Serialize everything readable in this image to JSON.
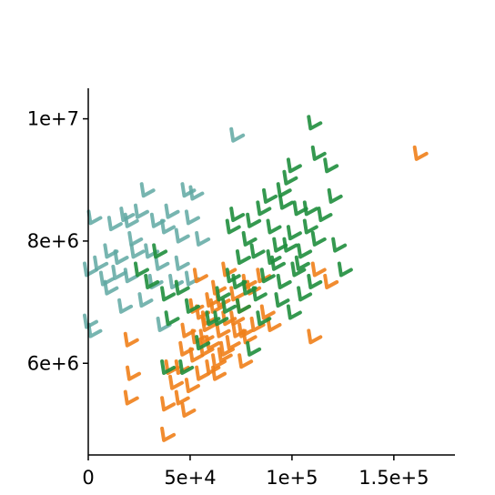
{
  "chart_data": {
    "type": "scatter",
    "title": "",
    "xlabel": "",
    "ylabel": "",
    "xlim": [
      0,
      180000
    ],
    "ylim": [
      4500000,
      10500000
    ],
    "x_ticks": [
      {
        "value": 0,
        "label": "0"
      },
      {
        "value": 50000,
        "label": "5e+4"
      },
      {
        "value": 100000,
        "label": "1e+5"
      },
      {
        "value": 150000,
        "label": "1.5e+5"
      }
    ],
    "y_ticks": [
      {
        "value": 6000000,
        "label": "6e+6"
      },
      {
        "value": 8000000,
        "label": "8e+6"
      },
      {
        "value": 10000000,
        "label": "1e+7"
      }
    ],
    "grid": false,
    "legend": "none",
    "marker": "check-mark",
    "series": [
      {
        "color": "#5fa8a2",
        "points": [
          [
            2000,
            8350000
          ],
          [
            12000,
            8250000
          ],
          [
            0,
            7500000
          ],
          [
            5000,
            7600000
          ],
          [
            10000,
            7800000
          ],
          [
            15000,
            7700000
          ],
          [
            18000,
            8400000
          ],
          [
            20000,
            7400000
          ],
          [
            22000,
            8000000
          ],
          [
            25000,
            8450000
          ],
          [
            28000,
            8800000
          ],
          [
            30000,
            7800000
          ],
          [
            33000,
            8300000
          ],
          [
            35000,
            7600000
          ],
          [
            38000,
            8200000
          ],
          [
            40000,
            8450000
          ],
          [
            42000,
            7300000
          ],
          [
            45000,
            8050000
          ],
          [
            48000,
            8800000
          ],
          [
            50000,
            8350000
          ],
          [
            52000,
            8750000
          ],
          [
            55000,
            8000000
          ],
          [
            27000,
            7000000
          ],
          [
            17000,
            6900000
          ],
          [
            10000,
            7200000
          ],
          [
            2000,
            6500000
          ],
          [
            32000,
            7300000
          ],
          [
            23000,
            7800000
          ],
          [
            14000,
            7450000
          ],
          [
            45000,
            7600000
          ],
          [
            50000,
            7350000
          ],
          [
            0,
            6650000
          ],
          [
            36000,
            6600000
          ],
          [
            72000,
            9700000
          ],
          [
            20000,
            8300000
          ],
          [
            8000,
            7350000
          ]
        ]
      },
      {
        "color": "#ef7f1a",
        "points": [
          [
            20000,
            6350000
          ],
          [
            21000,
            5800000
          ],
          [
            20000,
            5400000
          ],
          [
            38000,
            4800000
          ],
          [
            38000,
            5300000
          ],
          [
            40000,
            5900000
          ],
          [
            42000,
            5650000
          ],
          [
            45000,
            5900000
          ],
          [
            45000,
            5400000
          ],
          [
            47000,
            6200000
          ],
          [
            48000,
            5200000
          ],
          [
            50000,
            5600000
          ],
          [
            52000,
            6100000
          ],
          [
            53000,
            6400000
          ],
          [
            55000,
            5800000
          ],
          [
            55000,
            6800000
          ],
          [
            57000,
            6200000
          ],
          [
            58000,
            6600000
          ],
          [
            60000,
            5900000
          ],
          [
            60000,
            6300000
          ],
          [
            62000,
            6900000
          ],
          [
            63000,
            6000000
          ],
          [
            65000,
            6500000
          ],
          [
            65000,
            7000000
          ],
          [
            67000,
            6200000
          ],
          [
            68000,
            6700000
          ],
          [
            70000,
            6300000
          ],
          [
            72000,
            7100000
          ],
          [
            73000,
            6500000
          ],
          [
            75000,
            6900000
          ],
          [
            76000,
            6000000
          ],
          [
            78000,
            6400000
          ],
          [
            80000,
            7200000
          ],
          [
            82000,
            6600000
          ],
          [
            85000,
            7400000
          ],
          [
            87000,
            6800000
          ],
          [
            90000,
            6600000
          ],
          [
            78000,
            7300000
          ],
          [
            68000,
            7500000
          ],
          [
            63000,
            7200000
          ],
          [
            58000,
            6700000
          ],
          [
            52000,
            6900000
          ],
          [
            48000,
            6500000
          ],
          [
            54000,
            7400000
          ],
          [
            60000,
            7000000
          ],
          [
            110000,
            6400000
          ],
          [
            112000,
            7500000
          ],
          [
            118000,
            7300000
          ],
          [
            162000,
            9400000
          ],
          [
            63000,
            5800000
          ],
          [
            57000,
            6400000
          ],
          [
            66000,
            6100000
          ],
          [
            72000,
            6700000
          ],
          [
            76000,
            6500000
          ]
        ]
      },
      {
        "color": "#1f8e3d",
        "points": [
          [
            38000,
            5900000
          ],
          [
            47000,
            5900000
          ],
          [
            55000,
            6300000
          ],
          [
            60000,
            6700000
          ],
          [
            65000,
            7100000
          ],
          [
            70000,
            7400000
          ],
          [
            75000,
            7700000
          ],
          [
            78000,
            8000000
          ],
          [
            80000,
            8300000
          ],
          [
            82000,
            7800000
          ],
          [
            85000,
            8500000
          ],
          [
            88000,
            8700000
          ],
          [
            90000,
            8200000
          ],
          [
            92000,
            7600000
          ],
          [
            95000,
            8800000
          ],
          [
            98000,
            9000000
          ],
          [
            100000,
            8100000
          ],
          [
            102000,
            7500000
          ],
          [
            103000,
            8500000
          ],
          [
            105000,
            7800000
          ],
          [
            108000,
            8200000
          ],
          [
            110000,
            7300000
          ],
          [
            112000,
            8000000
          ],
          [
            115000,
            8400000
          ],
          [
            118000,
            9200000
          ],
          [
            120000,
            8700000
          ],
          [
            122000,
            7900000
          ],
          [
            125000,
            7500000
          ],
          [
            110000,
            9900000
          ],
          [
            112000,
            9400000
          ],
          [
            100000,
            9200000
          ],
          [
            96000,
            8600000
          ],
          [
            93000,
            7900000
          ],
          [
            87000,
            7400000
          ],
          [
            83000,
            7100000
          ],
          [
            78000,
            7200000
          ],
          [
            75000,
            6900000
          ],
          [
            73000,
            7300000
          ],
          [
            68000,
            6900000
          ],
          [
            64000,
            6700000
          ],
          [
            50000,
            6900000
          ],
          [
            45000,
            7200000
          ],
          [
            38000,
            7100000
          ],
          [
            34000,
            7800000
          ],
          [
            30000,
            7300000
          ],
          [
            25000,
            7500000
          ],
          [
            40000,
            6700000
          ],
          [
            70000,
            8200000
          ],
          [
            72000,
            8400000
          ],
          [
            80000,
            6200000
          ],
          [
            85000,
            6700000
          ],
          [
            95000,
            7300000
          ],
          [
            105000,
            7100000
          ],
          [
            100000,
            6800000
          ],
          [
            108000,
            8500000
          ],
          [
            90000,
            7700000
          ],
          [
            98000,
            7900000
          ],
          [
            104000,
            7600000
          ],
          [
            94000,
            7000000
          ]
        ]
      }
    ]
  }
}
